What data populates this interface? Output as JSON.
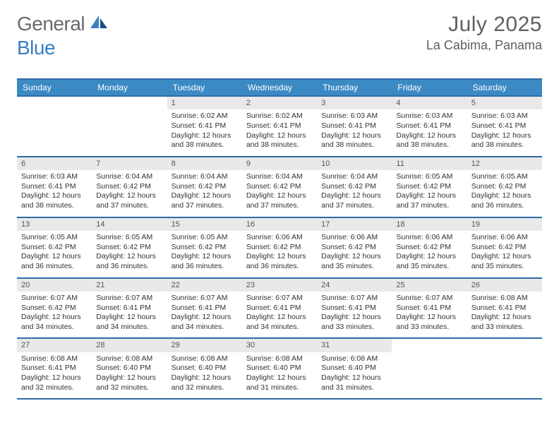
{
  "logo": {
    "general": "General",
    "blue": "Blue"
  },
  "title": {
    "month": "July 2025",
    "location": "La Cabima, Panama"
  },
  "colors": {
    "header_bg": "#3b8ac4",
    "header_border": "#2f6ca8",
    "numbar_bg": "#e9e9e9",
    "logo_gray": "#6a6a6a",
    "logo_blue": "#3b7ec1",
    "text": "#333333"
  },
  "daynames": [
    "Sunday",
    "Monday",
    "Tuesday",
    "Wednesday",
    "Thursday",
    "Friday",
    "Saturday"
  ],
  "weeks": [
    [
      null,
      null,
      {
        "n": "1",
        "sr": "6:02 AM",
        "ss": "6:41 PM",
        "dl": "12 hours and 38 minutes."
      },
      {
        "n": "2",
        "sr": "6:02 AM",
        "ss": "6:41 PM",
        "dl": "12 hours and 38 minutes."
      },
      {
        "n": "3",
        "sr": "6:03 AM",
        "ss": "6:41 PM",
        "dl": "12 hours and 38 minutes."
      },
      {
        "n": "4",
        "sr": "6:03 AM",
        "ss": "6:41 PM",
        "dl": "12 hours and 38 minutes."
      },
      {
        "n": "5",
        "sr": "6:03 AM",
        "ss": "6:41 PM",
        "dl": "12 hours and 38 minutes."
      }
    ],
    [
      {
        "n": "6",
        "sr": "6:03 AM",
        "ss": "6:41 PM",
        "dl": "12 hours and 38 minutes."
      },
      {
        "n": "7",
        "sr": "6:04 AM",
        "ss": "6:42 PM",
        "dl": "12 hours and 37 minutes."
      },
      {
        "n": "8",
        "sr": "6:04 AM",
        "ss": "6:42 PM",
        "dl": "12 hours and 37 minutes."
      },
      {
        "n": "9",
        "sr": "6:04 AM",
        "ss": "6:42 PM",
        "dl": "12 hours and 37 minutes."
      },
      {
        "n": "10",
        "sr": "6:04 AM",
        "ss": "6:42 PM",
        "dl": "12 hours and 37 minutes."
      },
      {
        "n": "11",
        "sr": "6:05 AM",
        "ss": "6:42 PM",
        "dl": "12 hours and 37 minutes."
      },
      {
        "n": "12",
        "sr": "6:05 AM",
        "ss": "6:42 PM",
        "dl": "12 hours and 36 minutes."
      }
    ],
    [
      {
        "n": "13",
        "sr": "6:05 AM",
        "ss": "6:42 PM",
        "dl": "12 hours and 36 minutes."
      },
      {
        "n": "14",
        "sr": "6:05 AM",
        "ss": "6:42 PM",
        "dl": "12 hours and 36 minutes."
      },
      {
        "n": "15",
        "sr": "6:05 AM",
        "ss": "6:42 PM",
        "dl": "12 hours and 36 minutes."
      },
      {
        "n": "16",
        "sr": "6:06 AM",
        "ss": "6:42 PM",
        "dl": "12 hours and 36 minutes."
      },
      {
        "n": "17",
        "sr": "6:06 AM",
        "ss": "6:42 PM",
        "dl": "12 hours and 35 minutes."
      },
      {
        "n": "18",
        "sr": "6:06 AM",
        "ss": "6:42 PM",
        "dl": "12 hours and 35 minutes."
      },
      {
        "n": "19",
        "sr": "6:06 AM",
        "ss": "6:42 PM",
        "dl": "12 hours and 35 minutes."
      }
    ],
    [
      {
        "n": "20",
        "sr": "6:07 AM",
        "ss": "6:42 PM",
        "dl": "12 hours and 34 minutes."
      },
      {
        "n": "21",
        "sr": "6:07 AM",
        "ss": "6:41 PM",
        "dl": "12 hours and 34 minutes."
      },
      {
        "n": "22",
        "sr": "6:07 AM",
        "ss": "6:41 PM",
        "dl": "12 hours and 34 minutes."
      },
      {
        "n": "23",
        "sr": "6:07 AM",
        "ss": "6:41 PM",
        "dl": "12 hours and 34 minutes."
      },
      {
        "n": "24",
        "sr": "6:07 AM",
        "ss": "6:41 PM",
        "dl": "12 hours and 33 minutes."
      },
      {
        "n": "25",
        "sr": "6:07 AM",
        "ss": "6:41 PM",
        "dl": "12 hours and 33 minutes."
      },
      {
        "n": "26",
        "sr": "6:08 AM",
        "ss": "6:41 PM",
        "dl": "12 hours and 33 minutes."
      }
    ],
    [
      {
        "n": "27",
        "sr": "6:08 AM",
        "ss": "6:41 PM",
        "dl": "12 hours and 32 minutes."
      },
      {
        "n": "28",
        "sr": "6:08 AM",
        "ss": "6:40 PM",
        "dl": "12 hours and 32 minutes."
      },
      {
        "n": "29",
        "sr": "6:08 AM",
        "ss": "6:40 PM",
        "dl": "12 hours and 32 minutes."
      },
      {
        "n": "30",
        "sr": "6:08 AM",
        "ss": "6:40 PM",
        "dl": "12 hours and 31 minutes."
      },
      {
        "n": "31",
        "sr": "6:08 AM",
        "ss": "6:40 PM",
        "dl": "12 hours and 31 minutes."
      },
      null,
      null
    ]
  ],
  "labels": {
    "sunrise": "Sunrise: ",
    "sunset": "Sunset: ",
    "daylight": "Daylight: "
  }
}
